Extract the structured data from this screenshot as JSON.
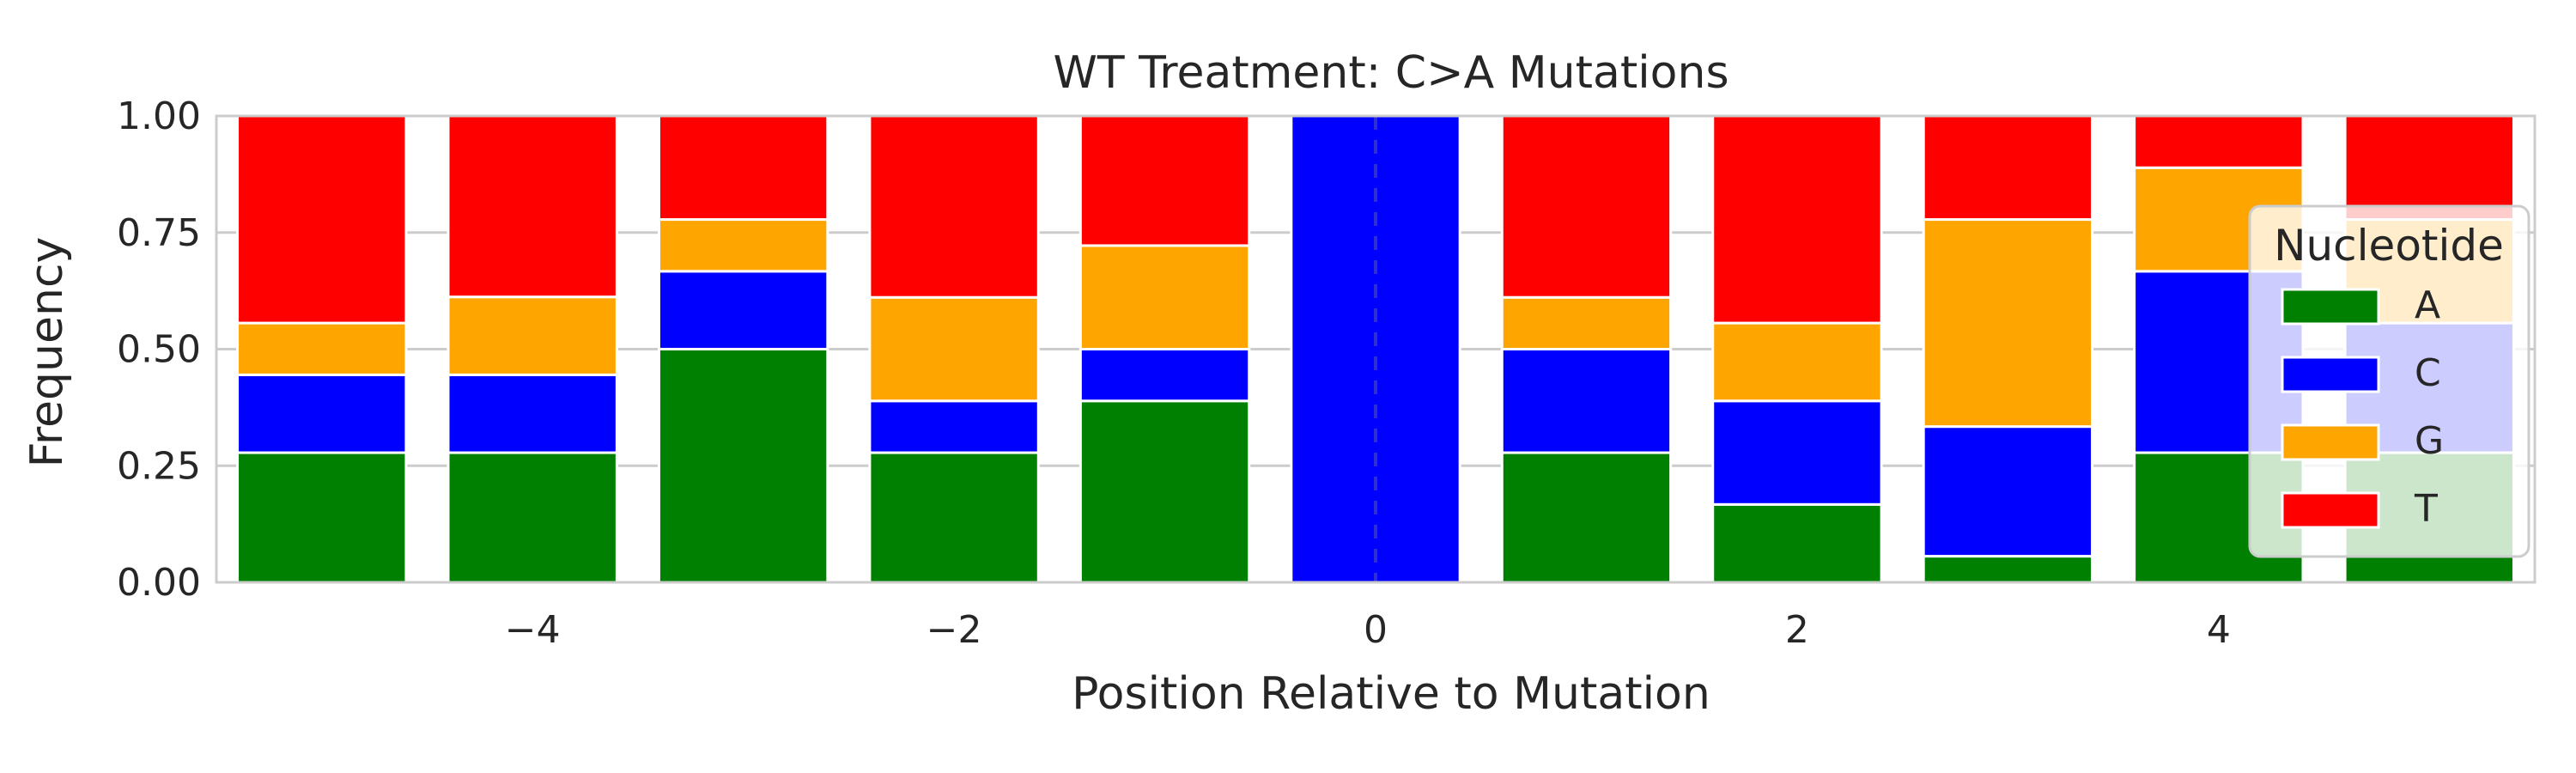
{
  "chart_data": {
    "type": "bar",
    "stacked": true,
    "title": "WT Treatment: C>A Mutations",
    "xlabel": "Position Relative to Mutation",
    "ylabel": "Frequency",
    "x": [
      -5,
      -4,
      -3,
      -2,
      -1,
      0,
      1,
      2,
      3,
      4,
      5
    ],
    "xlim": [
      -5.5,
      5.5
    ],
    "ylim": [
      0,
      1
    ],
    "xticks": [
      -4,
      -2,
      0,
      2,
      4
    ],
    "xtick_labels": [
      "−4",
      "−2",
      "0",
      "2",
      "4"
    ],
    "yticks": [
      0,
      0.25,
      0.5,
      0.75,
      1
    ],
    "ytick_labels": [
      "0.00",
      "0.25",
      "0.50",
      "0.75",
      "1.00"
    ],
    "grid": "y",
    "reference_line": {
      "x": 0,
      "style": "dashed"
    },
    "series": [
      {
        "name": "A",
        "color": "#008000",
        "values": [
          0.278,
          0.278,
          0.5,
          0.278,
          0.389,
          0.0,
          0.278,
          0.167,
          0.056,
          0.278,
          0.278
        ]
      },
      {
        "name": "C",
        "color": "#0000ff",
        "values": [
          0.167,
          0.167,
          0.167,
          0.111,
          0.111,
          1.0,
          0.222,
          0.222,
          0.278,
          0.389,
          0.278
        ]
      },
      {
        "name": "G",
        "color": "#ffa500",
        "values": [
          0.111,
          0.167,
          0.111,
          0.222,
          0.222,
          0.0,
          0.111,
          0.167,
          0.444,
          0.222,
          0.222
        ]
      },
      {
        "name": "T",
        "color": "#ff0000",
        "values": [
          0.444,
          0.389,
          0.222,
          0.389,
          0.278,
          0.0,
          0.389,
          0.444,
          0.222,
          0.111,
          0.222
        ]
      }
    ],
    "legend": {
      "title": "Nucleotide",
      "placement": "right"
    }
  }
}
